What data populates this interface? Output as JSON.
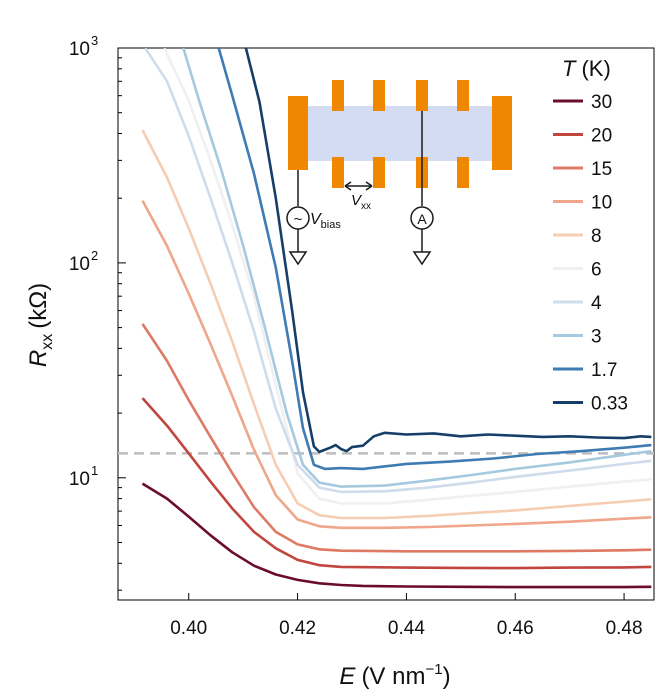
{
  "chart_data": {
    "type": "line",
    "title": "",
    "x_axis": {
      "label_var": "E",
      "label_unit": "(V nm",
      "label_exp": "−1",
      "label_close": ")",
      "range": [
        0.387,
        0.4855
      ],
      "ticks": [
        0.4,
        0.42,
        0.44,
        0.46,
        0.48
      ],
      "tick_labels": [
        "0.40",
        "0.42",
        "0.44",
        "0.46",
        "0.48"
      ]
    },
    "y_axis": {
      "label_var": "R",
      "label_sub": "xx",
      "label_unit": "(kΩ)",
      "scale": "log",
      "range": [
        2.7,
        1000
      ],
      "ticks": [
        10,
        100,
        1000
      ],
      "tick_labels": [
        {
          "base": "10",
          "exp": "1"
        },
        {
          "base": "10",
          "exp": "2"
        },
        {
          "base": "10",
          "exp": "3"
        }
      ]
    },
    "reference_line": {
      "y": 13,
      "style": "dashed",
      "color": "#bdbdbd"
    },
    "legend": {
      "title_var": "T",
      "title_unit": "(K)",
      "position": "right"
    },
    "series": [
      {
        "name": "30",
        "color": "#6b0d2a",
        "points": [
          [
            0.3915,
            9.4
          ],
          [
            0.396,
            8.0
          ],
          [
            0.4,
            6.6
          ],
          [
            0.404,
            5.4
          ],
          [
            0.408,
            4.5
          ],
          [
            0.412,
            3.9
          ],
          [
            0.416,
            3.55
          ],
          [
            0.42,
            3.35
          ],
          [
            0.424,
            3.23
          ],
          [
            0.428,
            3.17
          ],
          [
            0.432,
            3.14
          ],
          [
            0.44,
            3.12
          ],
          [
            0.45,
            3.11
          ],
          [
            0.46,
            3.1
          ],
          [
            0.47,
            3.1
          ],
          [
            0.48,
            3.1
          ],
          [
            0.485,
            3.11
          ]
        ]
      },
      {
        "name": "20",
        "color": "#c0463f",
        "points": [
          [
            0.3915,
            23.5
          ],
          [
            0.396,
            17.5
          ],
          [
            0.4,
            13.0
          ],
          [
            0.404,
            9.6
          ],
          [
            0.408,
            7.2
          ],
          [
            0.412,
            5.6
          ],
          [
            0.416,
            4.7
          ],
          [
            0.42,
            4.15
          ],
          [
            0.424,
            3.92
          ],
          [
            0.428,
            3.85
          ],
          [
            0.44,
            3.82
          ],
          [
            0.45,
            3.81
          ],
          [
            0.46,
            3.8
          ],
          [
            0.47,
            3.82
          ],
          [
            0.48,
            3.83
          ],
          [
            0.485,
            3.85
          ]
        ]
      },
      {
        "name": "15",
        "color": "#de7a63",
        "points": [
          [
            0.3915,
            52
          ],
          [
            0.396,
            35
          ],
          [
            0.4,
            23
          ],
          [
            0.404,
            15.5
          ],
          [
            0.408,
            10.5
          ],
          [
            0.412,
            7.3
          ],
          [
            0.416,
            5.6
          ],
          [
            0.42,
            4.9
          ],
          [
            0.424,
            4.65
          ],
          [
            0.428,
            4.58
          ],
          [
            0.44,
            4.55
          ],
          [
            0.45,
            4.55
          ],
          [
            0.46,
            4.55
          ],
          [
            0.47,
            4.57
          ],
          [
            0.48,
            4.6
          ],
          [
            0.485,
            4.63
          ]
        ]
      },
      {
        "name": "10",
        "color": "#efa68a",
        "points": [
          [
            0.3915,
            195
          ],
          [
            0.396,
            120
          ],
          [
            0.4,
            72
          ],
          [
            0.404,
            42
          ],
          [
            0.408,
            24
          ],
          [
            0.412,
            13.5
          ],
          [
            0.416,
            8.3
          ],
          [
            0.42,
            6.4
          ],
          [
            0.424,
            5.95
          ],
          [
            0.428,
            5.85
          ],
          [
            0.436,
            5.85
          ],
          [
            0.444,
            5.9
          ],
          [
            0.452,
            6.0
          ],
          [
            0.46,
            6.1
          ],
          [
            0.47,
            6.25
          ],
          [
            0.48,
            6.45
          ],
          [
            0.485,
            6.55
          ]
        ]
      },
      {
        "name": "8",
        "color": "#f5cdb2",
        "points": [
          [
            0.3915,
            415
          ],
          [
            0.396,
            250
          ],
          [
            0.4,
            145
          ],
          [
            0.404,
            80
          ],
          [
            0.408,
            43
          ],
          [
            0.412,
            22
          ],
          [
            0.416,
            11.5
          ],
          [
            0.42,
            7.6
          ],
          [
            0.424,
            6.7
          ],
          [
            0.428,
            6.5
          ],
          [
            0.436,
            6.5
          ],
          [
            0.444,
            6.65
          ],
          [
            0.452,
            6.85
          ],
          [
            0.46,
            7.05
          ],
          [
            0.47,
            7.4
          ],
          [
            0.48,
            7.75
          ],
          [
            0.485,
            7.95
          ]
        ]
      },
      {
        "name": "6",
        "color": "#f0f0f0",
        "points": [
          [
            0.3955,
            1000
          ],
          [
            0.4,
            570
          ],
          [
            0.404,
            300
          ],
          [
            0.408,
            150
          ],
          [
            0.412,
            70
          ],
          [
            0.416,
            27
          ],
          [
            0.42,
            10.5
          ],
          [
            0.424,
            8.0
          ],
          [
            0.428,
            7.6
          ],
          [
            0.436,
            7.6
          ],
          [
            0.444,
            7.9
          ],
          [
            0.452,
            8.25
          ],
          [
            0.46,
            8.6
          ],
          [
            0.47,
            9.1
          ],
          [
            0.48,
            9.6
          ],
          [
            0.485,
            9.85
          ]
        ]
      },
      {
        "name": "4",
        "color": "#cfdceb",
        "points": [
          [
            0.392,
            1000
          ],
          [
            0.396,
            700
          ],
          [
            0.4,
            390
          ],
          [
            0.404,
            200
          ],
          [
            0.408,
            100
          ],
          [
            0.412,
            48
          ],
          [
            0.416,
            21
          ],
          [
            0.42,
            11.5
          ],
          [
            0.424,
            9.0
          ],
          [
            0.428,
            8.6
          ],
          [
            0.436,
            8.65
          ],
          [
            0.444,
            9.0
          ],
          [
            0.452,
            9.5
          ],
          [
            0.46,
            10.1
          ],
          [
            0.47,
            10.8
          ],
          [
            0.48,
            11.6
          ],
          [
            0.485,
            12.0
          ]
        ]
      },
      {
        "name": "3",
        "color": "#a5c9de",
        "points": [
          [
            0.399,
            1000
          ],
          [
            0.402,
            560
          ],
          [
            0.406,
            270
          ],
          [
            0.41,
            120
          ],
          [
            0.414,
            50
          ],
          [
            0.418,
            20
          ],
          [
            0.421,
            11.5
          ],
          [
            0.424,
            9.5
          ],
          [
            0.428,
            9.1
          ],
          [
            0.436,
            9.2
          ],
          [
            0.444,
            9.7
          ],
          [
            0.452,
            10.3
          ],
          [
            0.46,
            11.0
          ],
          [
            0.47,
            11.8
          ],
          [
            0.48,
            12.8
          ],
          [
            0.485,
            13.3
          ]
        ]
      },
      {
        "name": "1.7",
        "color": "#3e7bb3",
        "points": [
          [
            0.4055,
            1000
          ],
          [
            0.408,
            600
          ],
          [
            0.412,
            260
          ],
          [
            0.416,
            95
          ],
          [
            0.419,
            35
          ],
          [
            0.421,
            17
          ],
          [
            0.423,
            11.5
          ],
          [
            0.425,
            11.0
          ],
          [
            0.428,
            11.1
          ],
          [
            0.432,
            11.0
          ],
          [
            0.44,
            11.6
          ],
          [
            0.448,
            11.9
          ],
          [
            0.456,
            12.3
          ],
          [
            0.464,
            12.9
          ],
          [
            0.472,
            13.3
          ],
          [
            0.48,
            13.8
          ],
          [
            0.485,
            14.2
          ]
        ]
      },
      {
        "name": "0.33",
        "color": "#163e69",
        "points": [
          [
            0.4105,
            1000
          ],
          [
            0.413,
            560
          ],
          [
            0.416,
            200
          ],
          [
            0.419,
            60
          ],
          [
            0.421,
            25
          ],
          [
            0.423,
            14.0
          ],
          [
            0.424,
            13.2
          ],
          [
            0.426,
            13.8
          ],
          [
            0.427,
            14.2
          ],
          [
            0.428,
            13.6
          ],
          [
            0.429,
            13.3
          ],
          [
            0.43,
            13.9
          ],
          [
            0.432,
            14.1
          ],
          [
            0.434,
            15.6
          ],
          [
            0.436,
            16.2
          ],
          [
            0.44,
            15.9
          ],
          [
            0.445,
            16.1
          ],
          [
            0.45,
            15.6
          ],
          [
            0.455,
            15.9
          ],
          [
            0.46,
            15.7
          ],
          [
            0.465,
            15.5
          ],
          [
            0.47,
            15.6
          ],
          [
            0.475,
            15.4
          ],
          [
            0.48,
            15.3
          ],
          [
            0.483,
            15.6
          ],
          [
            0.485,
            15.5
          ]
        ]
      }
    ],
    "inset": {
      "description_labels": {
        "vbias_var": "V",
        "vbias_sub": "bias",
        "vxx_var": "V",
        "vxx_sub": "xx",
        "ammeter": "A",
        "source": "~"
      },
      "colors": {
        "channel": "#d3dcf2",
        "contact": "#f08700",
        "wire": "#1a1a1a"
      }
    }
  }
}
